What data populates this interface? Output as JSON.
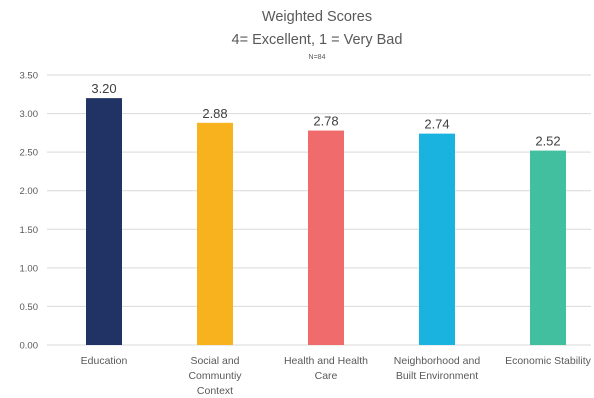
{
  "chart_data": {
    "type": "bar",
    "title": "Weighted Scores",
    "subtitle": "4= Excellent, 1 = Very Bad",
    "note": "N=84",
    "categories": [
      [
        "Education"
      ],
      [
        "Social and",
        "Communtiy",
        "Context"
      ],
      [
        "Health and Health",
        "Care"
      ],
      [
        "Neighborhood and",
        "Built Environment"
      ],
      [
        "Economic Stability"
      ]
    ],
    "values": [
      3.2,
      2.88,
      2.78,
      2.74,
      2.52
    ],
    "data_labels": [
      "3.20",
      "2.88",
      "2.78",
      "2.74",
      "2.52"
    ],
    "colors": [
      "#213264",
      "#F8B21D",
      "#F06C6C",
      "#1AB3E0",
      "#41BF9F"
    ],
    "ylim": [
      0,
      3.5
    ],
    "yticks": [
      "0.00",
      "0.50",
      "1.00",
      "1.50",
      "2.00",
      "2.50",
      "3.00",
      "3.50"
    ],
    "xlabel": "",
    "ylabel": "",
    "grid": true,
    "grid_color": "#D9D9D9",
    "legend": "none"
  }
}
